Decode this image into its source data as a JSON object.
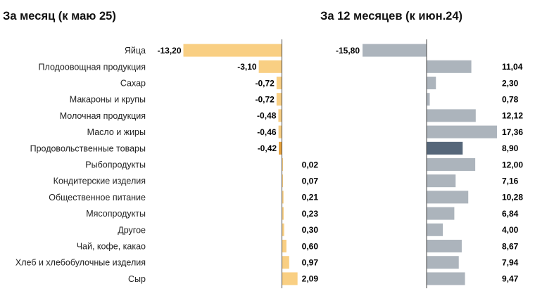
{
  "chart_data": [
    {
      "type": "bar",
      "orientation": "horizontal",
      "title": "За месяц (к маю 25)",
      "categories": [
        "Яйца",
        "Плодоовощная продукция",
        "Сахар",
        "Макароны и крупы",
        "Молочная продукция",
        "Масло и жиры",
        "Продовольственные товары",
        "Рыбопродукты",
        "Кондитерские изделия",
        "Общественное питание",
        "Мясопродукты",
        "Другое",
        "Чай, кофе, какао",
        "Хлеб и хлебобулочные изделия",
        "Сыр"
      ],
      "values": [
        -13.2,
        -3.1,
        -0.72,
        -0.72,
        -0.48,
        -0.46,
        -0.42,
        0.02,
        0.07,
        0.21,
        0.23,
        0.3,
        0.6,
        0.97,
        2.09
      ],
      "labels": [
        "-13,20",
        "-3,10",
        "-0,72",
        "-0,72",
        "-0,48",
        "-0,46",
        "-0,42",
        "0,02",
        "0,07",
        "0,21",
        "0,23",
        "0,30",
        "0,60",
        "0,97",
        "2,09"
      ],
      "highlight_index": 6,
      "color": "#f9cf83",
      "highlight_color": "#e8a23b",
      "xlim": [
        -13.2,
        2.09
      ]
    },
    {
      "type": "bar",
      "orientation": "horizontal",
      "title": "За 12 месяцев (к июн.24)",
      "categories": [
        "Яйца",
        "Плодоовощная продукция",
        "Сахар",
        "Макароны и крупы",
        "Молочная продукция",
        "Масло и жиры",
        "Продовольственные товары",
        "Рыбопродукты",
        "Кондитерские изделия",
        "Общественное питание",
        "Мясопродукты",
        "Другое",
        "Чай, кофе, какао",
        "Хлеб и хлебобулочные изделия",
        "Сыр"
      ],
      "values": [
        -15.8,
        11.04,
        2.3,
        0.78,
        12.12,
        17.36,
        8.9,
        12.0,
        7.16,
        10.28,
        6.84,
        4.0,
        8.67,
        7.94,
        9.47
      ],
      "labels": [
        "-15,80",
        "11,04",
        "2,30",
        "0,78",
        "12,12",
        "17,36",
        "8,90",
        "12,00",
        "7,16",
        "10,28",
        "6,84",
        "4,00",
        "8,67",
        "7,94",
        "9,47"
      ],
      "highlight_index": 6,
      "color": "#acb4bc",
      "highlight_color": "#56677a",
      "xlim": [
        -15.8,
        17.36
      ]
    }
  ]
}
